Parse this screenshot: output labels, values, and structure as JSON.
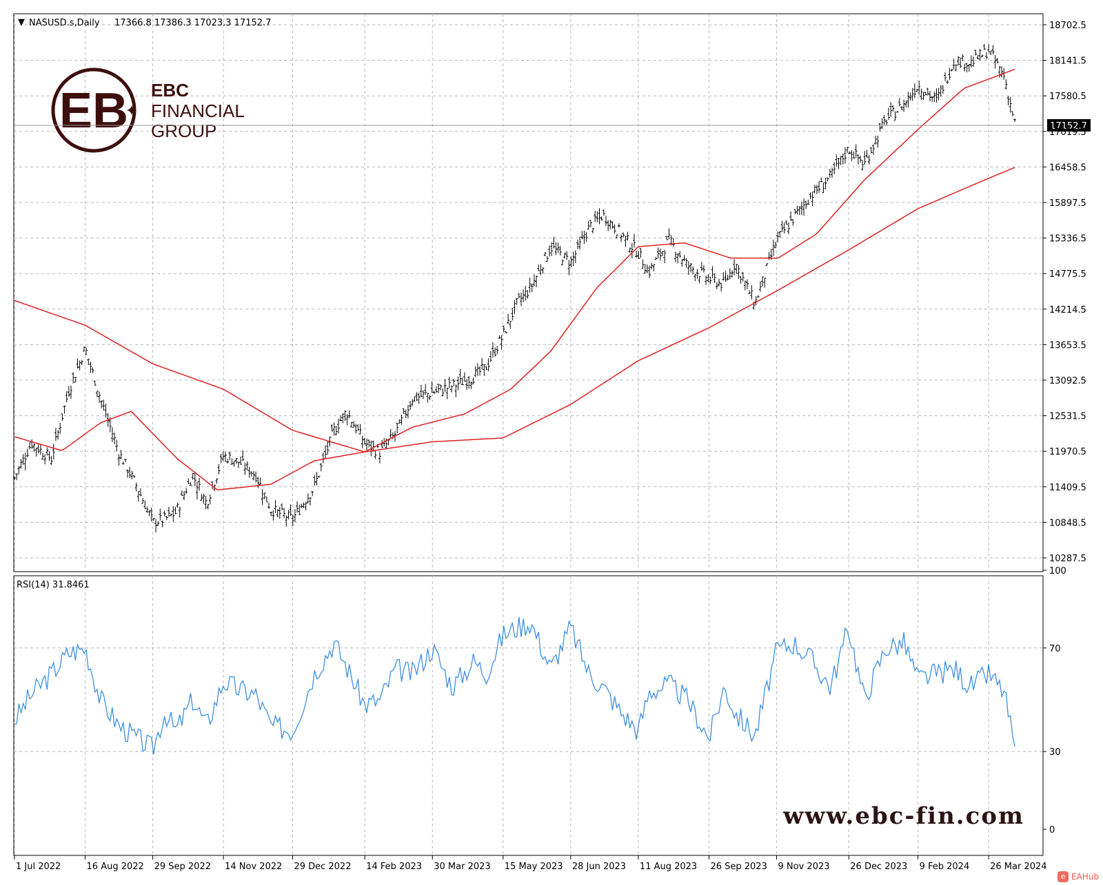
{
  "header": {
    "symbol": "NASUSD.s,Daily",
    "ohlc": "17366.8 17386.3 17023.3 17152.7"
  },
  "price_panel": {
    "current_price_label": "17152.7",
    "y_tick_labels": [
      "18702.5",
      "18141.5",
      "17580.5",
      "17019.5",
      "16458.5",
      "15897.5",
      "15336.5",
      "14775.5",
      "14214.5",
      "13653.5",
      "13092.5",
      "12531.5",
      "11970.5",
      "11409.5",
      "10848.5",
      "10287.5"
    ]
  },
  "rsi_panel": {
    "label": "RSI(14) 31.8461",
    "y_tick_labels": [
      "100",
      "70",
      "30",
      "0"
    ]
  },
  "x_tick_labels": [
    "1 Jul 2022",
    "16 Aug 2022",
    "29 Sep 2022",
    "14 Nov 2022",
    "29 Dec 2022",
    "14 Feb 2023",
    "30 Mar 2023",
    "15 May 2023",
    "28 Jun 2023",
    "11 Aug 2023",
    "26 Sep 2023",
    "9 Nov 2023",
    "26 Dec 2023",
    "9 Feb 2024",
    "26 Mar 2024"
  ],
  "logo": {
    "line1": "EBC",
    "line2": "FINANCIAL",
    "line3": "GROUP"
  },
  "website": "www.ebc-fin.com",
  "badge_text": "EAHub",
  "colors": {
    "price_bars": "#000000",
    "moving_averages": "#e02020",
    "rsi_line": "#3d8fe0",
    "grid": "#b8b8b8",
    "logo": "#3d0f0c"
  },
  "chart_data": [
    {
      "type": "ohlc",
      "title": "NASUSD.s,Daily",
      "last_close": 17152.7,
      "ylim": [
        10287.5,
        18702.5
      ],
      "x_range": [
        "1 Jul 2022",
        "12 Apr 2024"
      ],
      "series": [
        {
          "kind": "price_daily_approx",
          "x": [
            "2022-07-01",
            "2022-07-12",
            "2022-07-25",
            "2022-08-05",
            "2022-08-16",
            "2022-08-26",
            "2022-09-07",
            "2022-09-19",
            "2022-09-29",
            "2022-10-07",
            "2022-10-14",
            "2022-10-25",
            "2022-11-03",
            "2022-11-14",
            "2022-11-24",
            "2022-12-05",
            "2022-12-15",
            "2022-12-29",
            "2023-01-12",
            "2023-01-25",
            "2023-02-02",
            "2023-02-14",
            "2023-02-24",
            "2023-03-06",
            "2023-03-17",
            "2023-03-30",
            "2023-04-12",
            "2023-04-26",
            "2023-05-04",
            "2023-05-15",
            "2023-05-24",
            "2023-06-02",
            "2023-06-15",
            "2023-06-28",
            "2023-07-10",
            "2023-07-19",
            "2023-07-31",
            "2023-08-11",
            "2023-08-18",
            "2023-08-31",
            "2023-09-12",
            "2023-09-26",
            "2023-10-06",
            "2023-10-13",
            "2023-10-26",
            "2023-11-09",
            "2023-11-20",
            "2023-12-01",
            "2023-12-14",
            "2023-12-26",
            "2024-01-05",
            "2024-01-19",
            "2024-01-31",
            "2024-02-09",
            "2024-02-21",
            "2024-03-04",
            "2024-03-14",
            "2024-03-26",
            "2024-04-05",
            "2024-04-12"
          ],
          "close": [
            11550,
            12100,
            11850,
            12900,
            13600,
            12800,
            11950,
            11400,
            10850,
            10900,
            11000,
            11600,
            11150,
            11900,
            11800,
            11600,
            11050,
            10900,
            11400,
            12300,
            12600,
            12100,
            11950,
            12250,
            12800,
            12900,
            13000,
            13150,
            13300,
            13800,
            14300,
            14550,
            15200,
            14950,
            15500,
            15700,
            15400,
            15100,
            14800,
            15300,
            14900,
            14700,
            14600,
            14950,
            14300,
            15300,
            15650,
            16000,
            16300,
            16750,
            16500,
            17200,
            17450,
            17750,
            17500,
            18150,
            18100,
            18300,
            17900,
            17152.7
          ]
        },
        {
          "kind": "moving_average_50",
          "x": [
            "2022-07-01",
            "2022-08-01",
            "2022-08-26",
            "2022-09-15",
            "2022-10-15",
            "2022-11-10",
            "2022-12-15",
            "2023-01-12",
            "2023-02-14",
            "2023-03-17",
            "2023-04-20",
            "2023-05-20",
            "2023-06-15",
            "2023-07-15",
            "2023-08-11",
            "2023-09-10",
            "2023-10-10",
            "2023-11-10",
            "2023-12-05",
            "2024-01-05",
            "2024-02-09",
            "2024-03-10",
            "2024-04-12"
          ],
          "values": [
            12200,
            11980,
            12420,
            12600,
            11850,
            11360,
            11450,
            11820,
            11960,
            12350,
            12560,
            12950,
            13550,
            14550,
            15200,
            15260,
            15020,
            15020,
            15400,
            16250,
            17050,
            17700,
            18000
          ]
        },
        {
          "kind": "moving_average_200",
          "x": [
            "2022-07-01",
            "2022-08-16",
            "2022-09-29",
            "2022-11-14",
            "2022-12-29",
            "2023-02-14",
            "2023-03-30",
            "2023-05-15",
            "2023-06-28",
            "2023-08-11",
            "2023-09-26",
            "2023-11-09",
            "2023-12-26",
            "2024-02-09",
            "2024-03-26",
            "2024-04-12"
          ],
          "values": [
            14350,
            13960,
            13350,
            12950,
            12300,
            11960,
            12120,
            12180,
            12710,
            13400,
            13920,
            14500,
            15150,
            15800,
            16280,
            16450
          ]
        }
      ]
    },
    {
      "type": "line",
      "title": "RSI(14) 31.8461",
      "last_value": 31.8461,
      "ylim": [
        0,
        100
      ],
      "series": [
        {
          "name": "RSI(14)",
          "x": [
            "2022-07-01",
            "2022-07-12",
            "2022-07-25",
            "2022-08-05",
            "2022-08-16",
            "2022-08-26",
            "2022-09-07",
            "2022-09-19",
            "2022-09-29",
            "2022-10-07",
            "2022-10-14",
            "2022-10-25",
            "2022-11-03",
            "2022-11-14",
            "2022-11-24",
            "2022-12-05",
            "2022-12-15",
            "2022-12-29",
            "2023-01-12",
            "2023-01-25",
            "2023-02-02",
            "2023-02-14",
            "2023-02-24",
            "2023-03-06",
            "2023-03-17",
            "2023-03-30",
            "2023-04-12",
            "2023-04-26",
            "2023-05-04",
            "2023-05-15",
            "2023-05-24",
            "2023-06-02",
            "2023-06-15",
            "2023-06-28",
            "2023-07-10",
            "2023-07-19",
            "2023-07-31",
            "2023-08-11",
            "2023-08-18",
            "2023-08-31",
            "2023-09-12",
            "2023-09-26",
            "2023-10-06",
            "2023-10-13",
            "2023-10-26",
            "2023-11-09",
            "2023-11-20",
            "2023-12-01",
            "2023-12-14",
            "2023-12-26",
            "2024-01-05",
            "2024-01-19",
            "2024-01-31",
            "2024-02-09",
            "2024-02-21",
            "2024-03-04",
            "2024-03-14",
            "2024-03-26",
            "2024-04-05",
            "2024-04-12"
          ],
          "values": [
            42,
            52,
            60,
            68,
            70,
            50,
            40,
            35,
            31,
            45,
            38,
            50,
            40,
            57,
            54,
            52,
            40,
            38,
            60,
            72,
            63,
            48,
            50,
            62,
            60,
            70,
            55,
            65,
            60,
            75,
            78,
            80,
            62,
            78,
            60,
            55,
            45,
            38,
            53,
            56,
            50,
            35,
            55,
            45,
            36,
            69,
            72,
            66,
            55,
            78,
            50,
            70,
            72,
            58,
            60,
            62,
            55,
            60,
            53,
            31.8461
          ]
        }
      ]
    }
  ]
}
